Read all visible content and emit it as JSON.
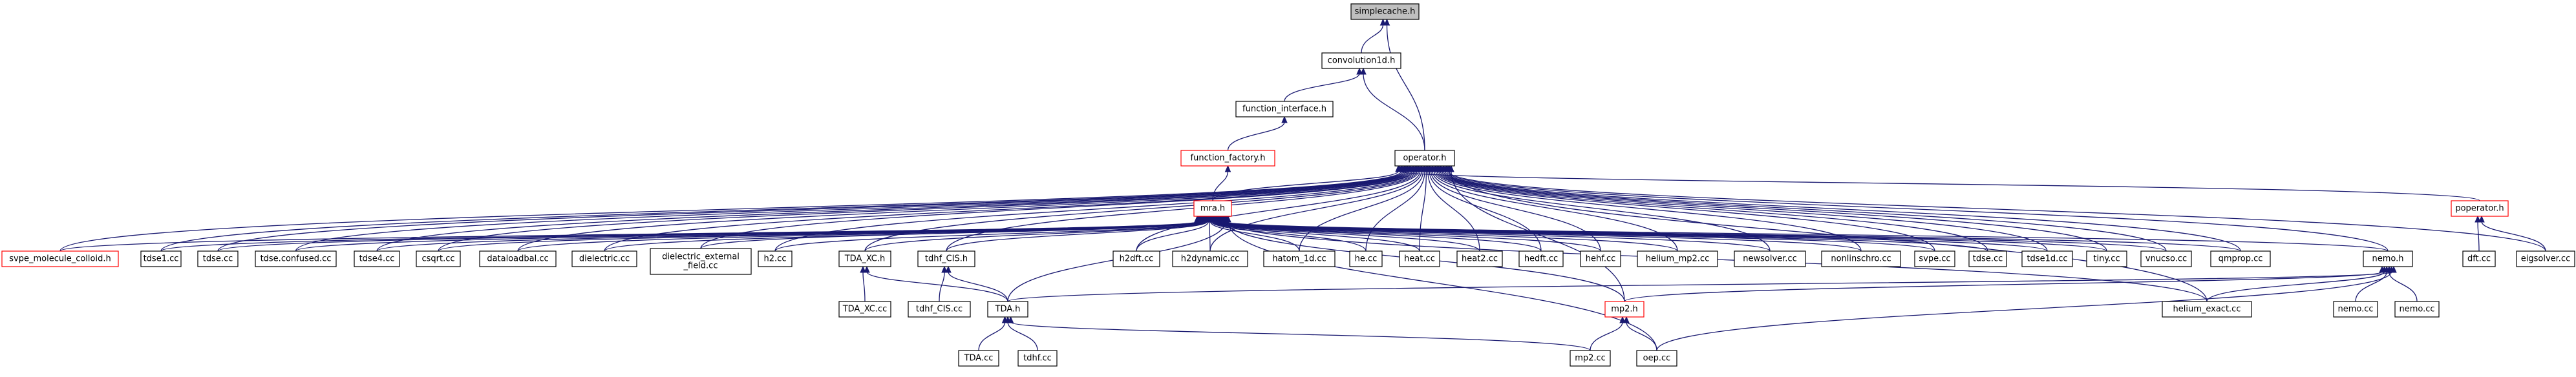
{
  "graph": {
    "colors": {
      "edge": "#191970",
      "node_border": "#000000",
      "incomplete_border": "#ff0000",
      "root_fill": "#bfbfbf",
      "background": "#ffffff"
    },
    "nodes": [
      {
        "id": "simplecache",
        "label": "simplecache.h",
        "kind": "root"
      },
      {
        "id": "conv",
        "label": "convolution1d.h"
      },
      {
        "id": "funcint",
        "label": "function_interface.h"
      },
      {
        "id": "funcfact",
        "label": "function_factory.h",
        "kind": "incomplete"
      },
      {
        "id": "operator",
        "label": "operator.h"
      },
      {
        "id": "mra",
        "label": "mra.h",
        "kind": "incomplete"
      },
      {
        "id": "poperator",
        "label": "poperator.h",
        "kind": "incomplete"
      },
      {
        "id": "svpe_mc",
        "label": "svpe_molecule_colloid.h",
        "kind": "incomplete"
      },
      {
        "id": "tdse1",
        "label": "tdse1.cc"
      },
      {
        "id": "tdse_a",
        "label": "tdse.cc"
      },
      {
        "id": "tdseconf",
        "label": "tdse.confused.cc"
      },
      {
        "id": "tdse4",
        "label": "tdse4.cc"
      },
      {
        "id": "csqrt",
        "label": "csqrt.cc"
      },
      {
        "id": "dataload",
        "label": "dataloadbal.cc"
      },
      {
        "id": "dielec",
        "label": "dielectric.cc"
      },
      {
        "id": "dielext",
        "label": "dielectric_external\n_field.cc"
      },
      {
        "id": "h2",
        "label": "h2.cc"
      },
      {
        "id": "tdaxch",
        "label": "TDA_XC.h"
      },
      {
        "id": "tdhfcish",
        "label": "tdhf_CIS.h"
      },
      {
        "id": "h2dft",
        "label": "h2dft.cc"
      },
      {
        "id": "h2dyn",
        "label": "h2dynamic.cc"
      },
      {
        "id": "hatom",
        "label": "hatom_1d.cc"
      },
      {
        "id": "he",
        "label": "he.cc"
      },
      {
        "id": "heat",
        "label": "heat.cc"
      },
      {
        "id": "heat2",
        "label": "heat2.cc"
      },
      {
        "id": "hedft",
        "label": "hedft.cc"
      },
      {
        "id": "hehf",
        "label": "hehf.cc"
      },
      {
        "id": "hemp2",
        "label": "helium_mp2.cc"
      },
      {
        "id": "newsolver",
        "label": "newsolver.cc"
      },
      {
        "id": "nonlin",
        "label": "nonlinschro.cc"
      },
      {
        "id": "svpe",
        "label": "svpe.cc"
      },
      {
        "id": "tdse_b",
        "label": "tdse.cc"
      },
      {
        "id": "tdse1d",
        "label": "tdse1d.cc"
      },
      {
        "id": "tiny",
        "label": "tiny.cc"
      },
      {
        "id": "vnucso",
        "label": "vnucso.cc"
      },
      {
        "id": "qmprop",
        "label": "qmprop.cc"
      },
      {
        "id": "nemoh",
        "label": "nemo.h"
      },
      {
        "id": "dft",
        "label": "dft.cc"
      },
      {
        "id": "eigsolver",
        "label": "eigsolver.cc"
      },
      {
        "id": "tdaxccc",
        "label": "TDA_XC.cc"
      },
      {
        "id": "tdhfciscc",
        "label": "tdhf_CIS.cc"
      },
      {
        "id": "tdah",
        "label": "TDA.h"
      },
      {
        "id": "mp2h",
        "label": "mp2.h",
        "kind": "incomplete"
      },
      {
        "id": "hexact",
        "label": "helium_exact.cc"
      },
      {
        "id": "nemocc1",
        "label": "nemo.cc"
      },
      {
        "id": "nemocc2",
        "label": "nemo.cc"
      },
      {
        "id": "tdacc",
        "label": "TDA.cc"
      },
      {
        "id": "tdhfcc",
        "label": "tdhf.cc"
      },
      {
        "id": "mp2cc",
        "label": "mp2.cc"
      },
      {
        "id": "oepcc",
        "label": "oep.cc"
      }
    ],
    "edges": [
      [
        "conv",
        "simplecache"
      ],
      [
        "operator",
        "simplecache"
      ],
      [
        "funcint",
        "conv"
      ],
      [
        "operator",
        "conv"
      ],
      [
        "funcfact",
        "funcint"
      ],
      [
        "mra",
        "funcfact"
      ],
      [
        "mra",
        "operator"
      ],
      [
        "poperator",
        "operator"
      ],
      [
        "svpe_mc",
        "operator"
      ],
      [
        "tdse1",
        "operator"
      ],
      [
        "tdse_a",
        "operator"
      ],
      [
        "tdseconf",
        "operator"
      ],
      [
        "tdse4",
        "operator"
      ],
      [
        "csqrt",
        "operator"
      ],
      [
        "dataload",
        "operator"
      ],
      [
        "dielec",
        "operator"
      ],
      [
        "dielext",
        "operator"
      ],
      [
        "h2",
        "operator"
      ],
      [
        "tdaxch",
        "operator"
      ],
      [
        "tdhfcish",
        "operator"
      ],
      [
        "h2dft",
        "operator"
      ],
      [
        "h2dyn",
        "operator"
      ],
      [
        "hatom",
        "operator"
      ],
      [
        "he",
        "operator"
      ],
      [
        "heat",
        "operator"
      ],
      [
        "heat2",
        "operator"
      ],
      [
        "hedft",
        "operator"
      ],
      [
        "hehf",
        "operator"
      ],
      [
        "hemp2",
        "operator"
      ],
      [
        "newsolver",
        "operator"
      ],
      [
        "nonlin",
        "operator"
      ],
      [
        "svpe",
        "operator"
      ],
      [
        "tdse_b",
        "operator"
      ],
      [
        "tdse1d",
        "operator"
      ],
      [
        "tiny",
        "operator"
      ],
      [
        "vnucso",
        "operator"
      ],
      [
        "qmprop",
        "operator"
      ],
      [
        "nemoh",
        "operator"
      ],
      [
        "eigsolver",
        "operator"
      ],
      [
        "hexact",
        "operator"
      ],
      [
        "mp2h",
        "operator"
      ],
      [
        "svpe_mc",
        "mra"
      ],
      [
        "tdse1",
        "mra"
      ],
      [
        "tdse_a",
        "mra"
      ],
      [
        "tdseconf",
        "mra"
      ],
      [
        "tdse4",
        "mra"
      ],
      [
        "csqrt",
        "mra"
      ],
      [
        "dataload",
        "mra"
      ],
      [
        "dielec",
        "mra"
      ],
      [
        "dielext",
        "mra"
      ],
      [
        "h2",
        "mra"
      ],
      [
        "tdaxch",
        "mra"
      ],
      [
        "tdhfcish",
        "mra"
      ],
      [
        "h2dft",
        "mra"
      ],
      [
        "h2dyn",
        "mra"
      ],
      [
        "hatom",
        "mra"
      ],
      [
        "he",
        "mra"
      ],
      [
        "heat",
        "mra"
      ],
      [
        "heat2",
        "mra"
      ],
      [
        "hedft",
        "mra"
      ],
      [
        "hehf",
        "mra"
      ],
      [
        "hemp2",
        "mra"
      ],
      [
        "newsolver",
        "mra"
      ],
      [
        "nonlin",
        "mra"
      ],
      [
        "svpe",
        "mra"
      ],
      [
        "tdse_b",
        "mra"
      ],
      [
        "tdse1d",
        "mra"
      ],
      [
        "tiny",
        "mra"
      ],
      [
        "vnucso",
        "mra"
      ],
      [
        "qmprop",
        "mra"
      ],
      [
        "nemoh",
        "mra"
      ],
      [
        "tdah",
        "mra"
      ],
      [
        "mp2h",
        "mra"
      ],
      [
        "hexact",
        "mra"
      ],
      [
        "oepcc",
        "mra"
      ],
      [
        "dft",
        "poperator"
      ],
      [
        "eigsolver",
        "poperator"
      ],
      [
        "tdaxccc",
        "tdaxch"
      ],
      [
        "tdah",
        "tdaxch"
      ],
      [
        "tdhfciscc",
        "tdhfcish"
      ],
      [
        "tdah",
        "tdhfcish"
      ],
      [
        "tdacc",
        "tdah"
      ],
      [
        "tdhfcc",
        "tdah"
      ],
      [
        "mp2h",
        "nemoh"
      ],
      [
        "hexact",
        "nemoh"
      ],
      [
        "nemocc1",
        "nemoh"
      ],
      [
        "nemocc2",
        "nemoh"
      ],
      [
        "oepcc",
        "nemoh"
      ],
      [
        "tdah",
        "nemoh"
      ],
      [
        "mp2cc",
        "mp2h"
      ],
      [
        "oepcc",
        "mp2h"
      ],
      [
        "mp2cc",
        "tdah"
      ]
    ]
  }
}
